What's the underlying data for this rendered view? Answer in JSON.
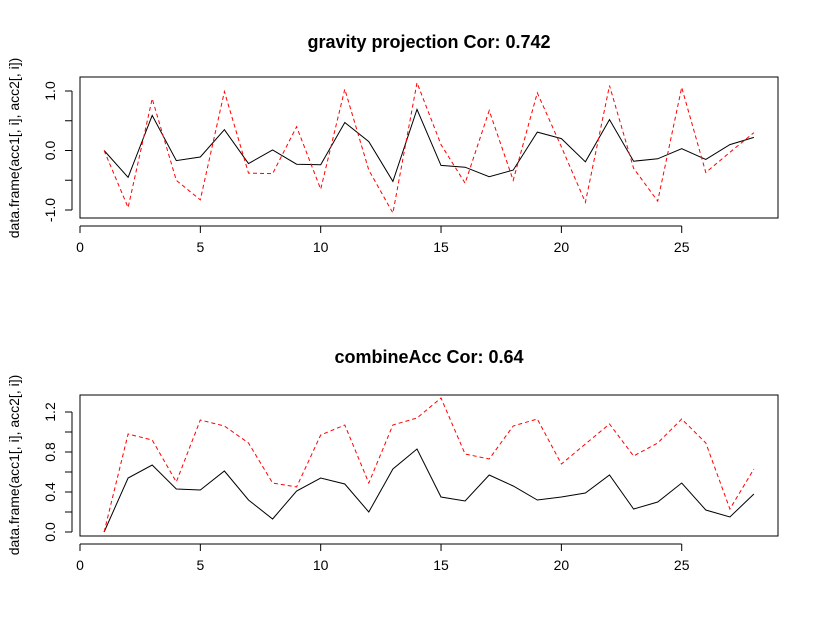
{
  "chart_data": [
    {
      "type": "line",
      "title": "gravity projection Cor: 0.742",
      "xlabel": "",
      "ylabel": "data.frame(acc1[, i], acc2[, i])",
      "xlim": [
        0,
        29
      ],
      "ylim": [
        -1.1,
        1.22
      ],
      "xticks": [
        0,
        5,
        10,
        15,
        20,
        25
      ],
      "yticks": [
        -1.0,
        -0.5,
        0.0,
        0.5,
        1.0
      ],
      "ytick_labels": [
        "-1.0",
        "",
        "0.0",
        "",
        "1.0"
      ],
      "grid": false,
      "series": [
        {
          "name": "acc1",
          "color": "#000000",
          "dash": "solid",
          "x": [
            1,
            2,
            3,
            4,
            5,
            6,
            7,
            8,
            9,
            10,
            11,
            12,
            13,
            14,
            15,
            16,
            17,
            18,
            19,
            20,
            21,
            22,
            23,
            24,
            25,
            26,
            27,
            28
          ],
          "values": [
            0.0,
            -0.45,
            0.59,
            -0.17,
            -0.11,
            0.35,
            -0.22,
            0.01,
            -0.23,
            -0.24,
            0.47,
            0.15,
            -0.52,
            0.69,
            -0.25,
            -0.28,
            -0.44,
            -0.33,
            0.31,
            0.2,
            -0.19,
            0.52,
            -0.18,
            -0.14,
            0.03,
            -0.15,
            0.1,
            0.22
          ]
        },
        {
          "name": "acc2",
          "color": "#ff0000",
          "dash": "dashed",
          "x": [
            1,
            2,
            3,
            4,
            5,
            6,
            7,
            8,
            9,
            10,
            11,
            12,
            13,
            14,
            15,
            16,
            17,
            18,
            19,
            20,
            21,
            22,
            23,
            24,
            25,
            26,
            27,
            28
          ],
          "values": [
            0.0,
            -0.96,
            0.87,
            -0.5,
            -0.83,
            0.99,
            -0.38,
            -0.39,
            0.4,
            -0.65,
            1.03,
            -0.33,
            -1.05,
            1.14,
            0.1,
            -0.55,
            0.67,
            -0.5,
            0.97,
            0.06,
            -0.87,
            1.09,
            -0.3,
            -0.85,
            1.06,
            -0.37,
            -0.03,
            0.3
          ]
        }
      ]
    },
    {
      "type": "line",
      "title": "combineAcc Cor: 0.64",
      "xlabel": "",
      "ylabel": "data.frame(acc1[, i], acc2[, i])",
      "xlim": [
        0,
        29
      ],
      "ylim": [
        -0.03,
        1.4
      ],
      "xticks": [
        0,
        5,
        10,
        15,
        20,
        25
      ],
      "yticks": [
        0.0,
        0.2,
        0.4,
        0.6,
        0.8,
        1.0,
        1.2
      ],
      "ytick_labels": [
        "0.0",
        "",
        "0.4",
        "",
        "0.8",
        "",
        "1.2"
      ],
      "grid": false,
      "series": [
        {
          "name": "acc1",
          "color": "#000000",
          "dash": "solid",
          "x": [
            1,
            2,
            3,
            4,
            5,
            6,
            7,
            8,
            9,
            10,
            11,
            12,
            13,
            14,
            15,
            16,
            17,
            18,
            19,
            20,
            21,
            22,
            23,
            24,
            25,
            26,
            27,
            28
          ],
          "values": [
            0.0,
            0.54,
            0.67,
            0.43,
            0.42,
            0.61,
            0.32,
            0.13,
            0.41,
            0.54,
            0.48,
            0.2,
            0.63,
            0.83,
            0.35,
            0.31,
            0.57,
            0.46,
            0.32,
            0.35,
            0.39,
            0.57,
            0.23,
            0.3,
            0.49,
            0.22,
            0.15,
            0.38
          ]
        },
        {
          "name": "acc2",
          "color": "#ff0000",
          "dash": "dashed",
          "x": [
            1,
            2,
            3,
            4,
            5,
            6,
            7,
            8,
            9,
            10,
            11,
            12,
            13,
            14,
            15,
            16,
            17,
            18,
            19,
            20,
            21,
            22,
            23,
            24,
            25,
            26,
            27,
            28
          ],
          "values": [
            0.0,
            0.98,
            0.92,
            0.5,
            1.12,
            1.06,
            0.89,
            0.49,
            0.45,
            0.97,
            1.07,
            0.49,
            1.07,
            1.14,
            1.34,
            0.78,
            0.73,
            1.06,
            1.13,
            0.68,
            0.88,
            1.08,
            0.76,
            0.89,
            1.13,
            0.89,
            0.23,
            0.63
          ]
        }
      ]
    }
  ]
}
